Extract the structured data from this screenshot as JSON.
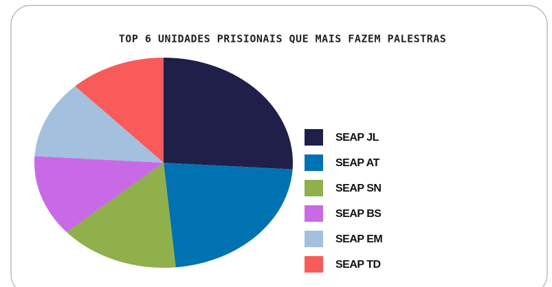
{
  "chart_data": {
    "type": "pie",
    "title": "TOP 6 UNIDADES PRISIONAIS QUE MAIS FAZEM PALESTRAS",
    "categories": [
      "SEAP JL",
      "SEAP AT",
      "SEAP SN",
      "SEAP BS",
      "SEAP EM",
      "SEAP TD"
    ],
    "values": [
      26,
      22.5,
      15,
      12.5,
      12,
      12
    ],
    "colors": [
      "#1f1f4a",
      "#0072b2",
      "#8fb04a",
      "#c86ae6",
      "#a3c1de",
      "#f95a5a"
    ],
    "legend": "right"
  }
}
